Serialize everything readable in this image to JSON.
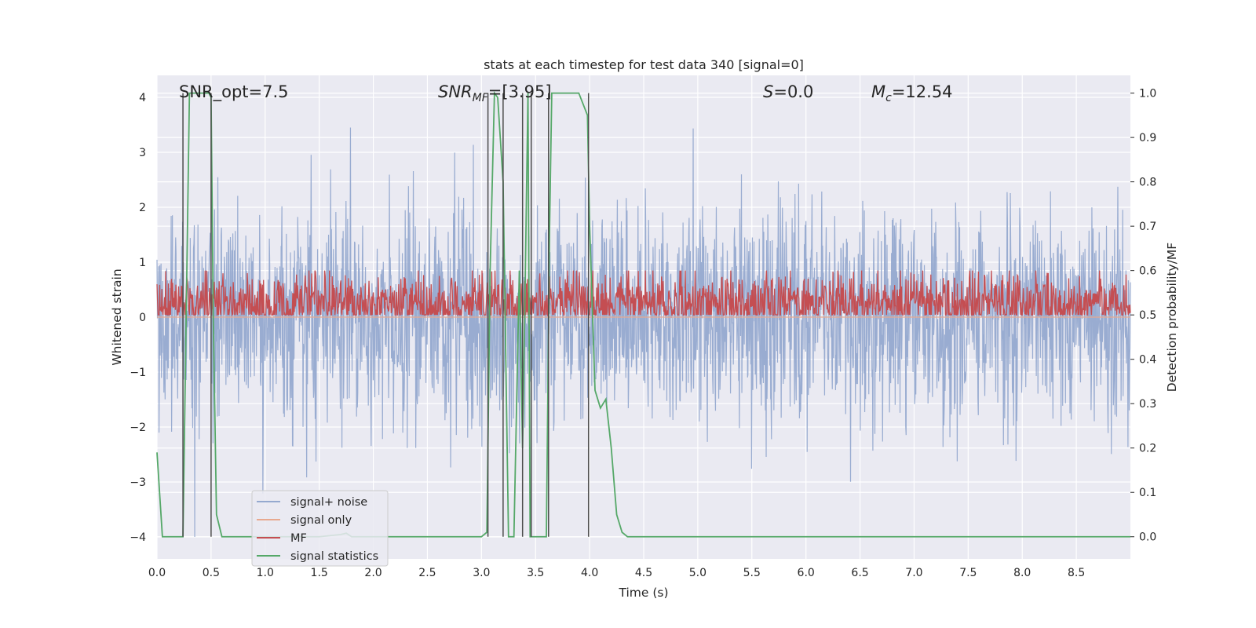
{
  "chart_data": {
    "type": "line",
    "title": "stats at each timestep for test data 340 [signal=0]",
    "xlabel": "Time (s)",
    "ylabel_left": "Whitened strain",
    "ylabel_right": "Detection probability/MF",
    "xlim": [
      0,
      9
    ],
    "ylim_left": [
      -4.4,
      4.4
    ],
    "ylim_right": [
      -0.05,
      1.04
    ],
    "xticks": [
      0.0,
      0.5,
      1.0,
      1.5,
      2.0,
      2.5,
      3.0,
      3.5,
      4.0,
      4.5,
      5.0,
      5.5,
      6.0,
      6.5,
      7.0,
      7.5,
      8.0,
      8.5
    ],
    "xtick_labels": [
      "0.0",
      "0.5",
      "1.0",
      "1.5",
      "2.0",
      "2.5",
      "3.0",
      "3.5",
      "4.0",
      "4.5",
      "5.0",
      "5.5",
      "6.0",
      "6.5",
      "7.0",
      "7.5",
      "8.0",
      "8.5"
    ],
    "yticks_left": [
      4,
      3,
      2,
      1,
      0,
      -1,
      -2,
      -3,
      -4
    ],
    "ytick_labels_left": [
      "4",
      "3",
      "2",
      "1",
      "0",
      "−1",
      "−2",
      "−3",
      "−4"
    ],
    "yticks_right": [
      1.0,
      0.9,
      0.8,
      0.7,
      0.6,
      0.5,
      0.4,
      0.3,
      0.2,
      0.1,
      0.0
    ],
    "ytick_labels_right": [
      "1.0",
      "0.9",
      "0.8",
      "0.7",
      "0.6",
      "0.5",
      "0.4",
      "0.3",
      "0.2",
      "0.1",
      "0.0"
    ],
    "annotations": {
      "snr_opt": "SNR_opt=7.5",
      "snr_mf_sym": "SNR",
      "snr_mf_sub": "MF",
      "snr_mf_val": "=[3.95]",
      "s_sym": "S",
      "s_val": "=0.0",
      "mc_sym": "M",
      "mc_sub": "c",
      "mc_val": "=12.54"
    },
    "legend": {
      "position": "lower-left",
      "entries": [
        {
          "label": "signal+ noise",
          "color": "#95a9cf"
        },
        {
          "label": "signal only",
          "color": "#e8a98f"
        },
        {
          "label": "MF",
          "color": "#c44e52"
        },
        {
          "label": "signal statistics",
          "color": "#55a868"
        }
      ]
    },
    "series": [
      {
        "name": "signal+ noise",
        "axis": "left",
        "kind": "noise",
        "std": 1.0,
        "range": [
          -4.0,
          4.0
        ],
        "color": "#95a9cf"
      },
      {
        "name": "signal only",
        "axis": "left",
        "kind": "flat",
        "value": 0.0,
        "color": "#e8a98f"
      },
      {
        "name": "MF",
        "axis": "right",
        "kind": "noise",
        "mean": 0.525,
        "std": 0.035,
        "range": [
          0.5,
          0.6
        ],
        "color": "#c44e52"
      },
      {
        "name": "signal statistics",
        "axis": "right",
        "color": "#55a868",
        "x": [
          0.0,
          0.05,
          0.1,
          0.15,
          0.2,
          0.24,
          0.27,
          0.3,
          0.33,
          0.48,
          0.5,
          0.52,
          0.55,
          0.6,
          0.65,
          1.0,
          1.2,
          1.5,
          1.7,
          1.75,
          1.8,
          2.0,
          2.5,
          3.0,
          3.05,
          3.08,
          3.12,
          3.15,
          3.2,
          3.25,
          3.3,
          3.35,
          3.38,
          3.4,
          3.43,
          3.45,
          3.5,
          3.6,
          3.63,
          3.65,
          3.7,
          3.9,
          3.98,
          4.0,
          4.05,
          4.1,
          4.15,
          4.2,
          4.25,
          4.3,
          4.35,
          4.4,
          9.0
        ],
        "y": [
          0.19,
          0.0,
          0.0,
          0.0,
          0.0,
          0.0,
          0.5,
          1.0,
          1.0,
          1.0,
          0.99,
          0.5,
          0.05,
          0.0,
          0.0,
          0.0,
          0.0,
          0.0,
          0.005,
          0.008,
          0.0,
          0.0,
          0.0,
          0.0,
          0.01,
          0.6,
          1.0,
          0.99,
          0.8,
          0.0,
          0.0,
          0.6,
          0.2,
          0.5,
          1.0,
          0.0,
          0.0,
          0.0,
          0.7,
          1.0,
          1.0,
          1.0,
          0.95,
          0.7,
          0.33,
          0.29,
          0.31,
          0.2,
          0.05,
          0.01,
          0.0,
          0.0,
          0.0
        ]
      },
      {
        "name": "markers",
        "axis": "right",
        "kind": "vlines",
        "color": "#4d4d4d",
        "x": [
          0.24,
          0.5,
          3.06,
          3.2,
          3.38,
          3.46,
          3.62,
          3.99
        ]
      }
    ]
  }
}
